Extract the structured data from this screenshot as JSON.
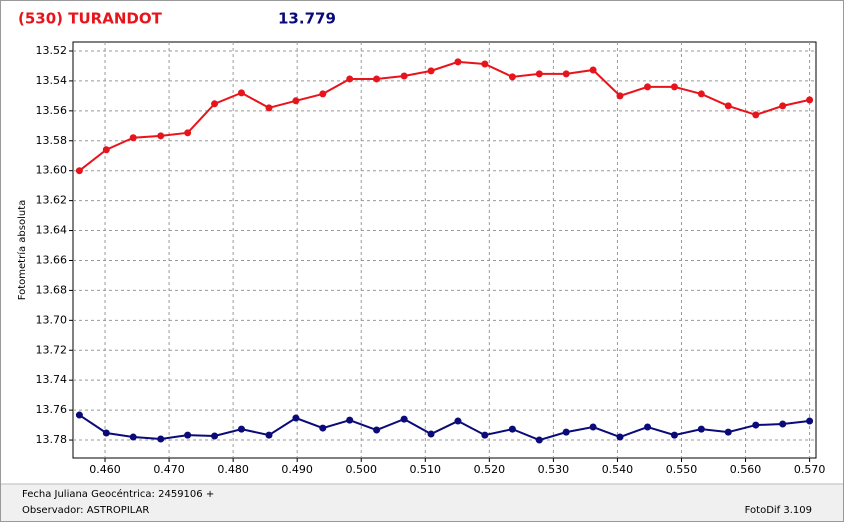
{
  "chart_data": {
    "type": "line",
    "title": "(530) TURANDOT",
    "subtitle": "13.779",
    "y_label": "Fotometría absoluta",
    "x": [
      0.456,
      0.4602,
      0.4644,
      0.4687,
      0.4729,
      0.4771,
      0.4813,
      0.4856,
      0.4898,
      0.494,
      0.4982,
      0.5024,
      0.5067,
      0.5109,
      0.5151,
      0.5193,
      0.5236,
      0.5278,
      0.532,
      0.5362,
      0.5404,
      0.5447,
      0.5489,
      0.5531,
      0.5573,
      0.5616,
      0.5658,
      0.57
    ],
    "series": [
      {
        "color": "#e8141c",
        "values": [
          13.6,
          13.586,
          13.578,
          13.5767,
          13.5747,
          13.5553,
          13.548,
          13.558,
          13.5533,
          13.5487,
          13.5387,
          13.5387,
          13.5367,
          13.5333,
          13.5273,
          13.5287,
          13.5373,
          13.5353,
          13.5353,
          13.5327,
          13.55,
          13.544,
          13.544,
          13.5487,
          13.5567,
          13.5627,
          13.5567,
          13.5527
        ]
      },
      {
        "color": "#0a0a78",
        "values": [
          13.7633,
          13.7753,
          13.778,
          13.7793,
          13.7767,
          13.7773,
          13.7727,
          13.7767,
          13.7653,
          13.772,
          13.7667,
          13.7733,
          13.766,
          13.776,
          13.7673,
          13.7767,
          13.7727,
          13.78,
          13.7747,
          13.7713,
          13.778,
          13.7713,
          13.7767,
          13.7727,
          13.7747,
          13.77,
          13.7693,
          13.7673
        ]
      }
    ],
    "xlim": [
      0.455,
      0.571
    ],
    "ylim": [
      13.514,
      13.792
    ],
    "y_inverted": true,
    "grid": true,
    "xticks": [
      {
        "value": 0.46,
        "label": "0.460"
      },
      {
        "value": 0.47,
        "label": "0.470"
      },
      {
        "value": 0.48,
        "label": "0.480"
      },
      {
        "value": 0.49,
        "label": "0.490"
      },
      {
        "value": 0.5,
        "label": "0.500"
      },
      {
        "value": 0.51,
        "label": "0.510"
      },
      {
        "value": 0.52,
        "label": "0.520"
      },
      {
        "value": 0.53,
        "label": "0.530"
      },
      {
        "value": 0.54,
        "label": "0.540"
      },
      {
        "value": 0.55,
        "label": "0.550"
      },
      {
        "value": 0.56,
        "label": "0.560"
      },
      {
        "value": 0.57,
        "label": "0.570"
      }
    ],
    "yticks": [
      13.52,
      13.54,
      13.56,
      13.58,
      {
        "value": 13.6,
        "label": "13.60"
      },
      13.62,
      13.64,
      13.66,
      13.68,
      {
        "value": 13.7,
        "label": "13.70"
      },
      13.72,
      13.74,
      13.76,
      13.78
    ]
  },
  "footer": {
    "julian_date": "Fecha Juliana Geocéntrica: 2459106 +",
    "observer": "Observador: ASTROPILAR",
    "software": "FotoDif 3.109"
  }
}
